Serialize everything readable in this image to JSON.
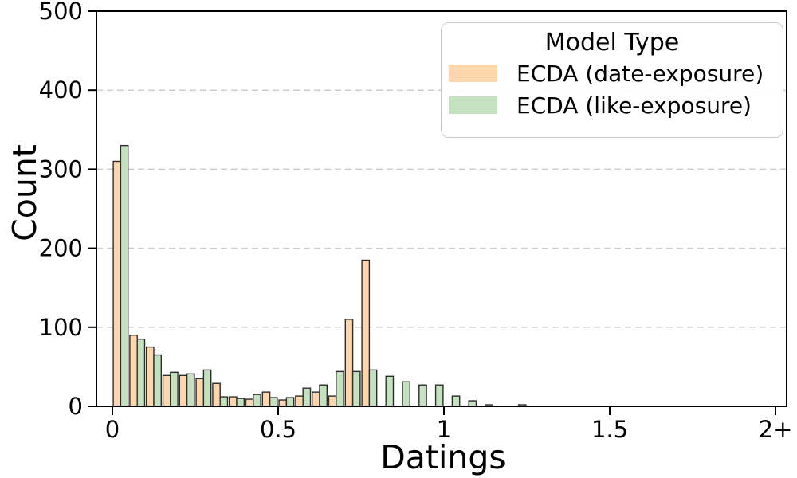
{
  "chart_data": {
    "type": "bar",
    "subtype": "histogram-grouped",
    "xlabel": "Datings",
    "ylabel": "Count",
    "xlim": [
      -0.05,
      2.035
    ],
    "ylim": [
      0,
      500
    ],
    "bin_width": 0.05,
    "bin_starts": [
      0.0,
      0.05,
      0.1,
      0.15,
      0.2,
      0.25,
      0.3,
      0.35,
      0.4,
      0.45,
      0.5,
      0.55,
      0.6,
      0.65,
      0.7,
      0.75,
      0.8,
      0.85,
      0.9,
      0.95,
      1.0,
      1.05,
      1.1,
      1.15,
      1.2
    ],
    "series": [
      {
        "name": "ECDA (date-exposure)",
        "color": "#FDD6AE",
        "values": [
          310,
          90,
          75,
          39,
          39,
          35,
          29,
          12,
          9,
          18,
          8,
          13,
          18,
          13,
          110,
          185,
          0,
          0,
          0,
          0,
          0,
          0,
          0,
          0,
          0
        ]
      },
      {
        "name": "ECDA (like-exposure)",
        "color": "#C4E1C0",
        "values": [
          330,
          85,
          65,
          43,
          41,
          46,
          12,
          10,
          15,
          11,
          11,
          23,
          27,
          44,
          44,
          46,
          38,
          31,
          27,
          27,
          13,
          7,
          2,
          0,
          2
        ]
      }
    ],
    "xticks": [
      {
        "value": 0,
        "label": "0"
      },
      {
        "value": 0.5,
        "label": "0.5"
      },
      {
        "value": 1,
        "label": "1"
      },
      {
        "value": 1.5,
        "label": "1.5"
      },
      {
        "value": 2,
        "label": "2+"
      }
    ],
    "yticks": [
      0,
      100,
      200,
      300,
      400,
      500
    ],
    "grid": {
      "axis": "y",
      "style": "dashed",
      "color": "#cdcdcd"
    },
    "legend": {
      "title": "Model Type",
      "position": "upper right"
    },
    "bar_edge_color": "#2d2d2d"
  }
}
